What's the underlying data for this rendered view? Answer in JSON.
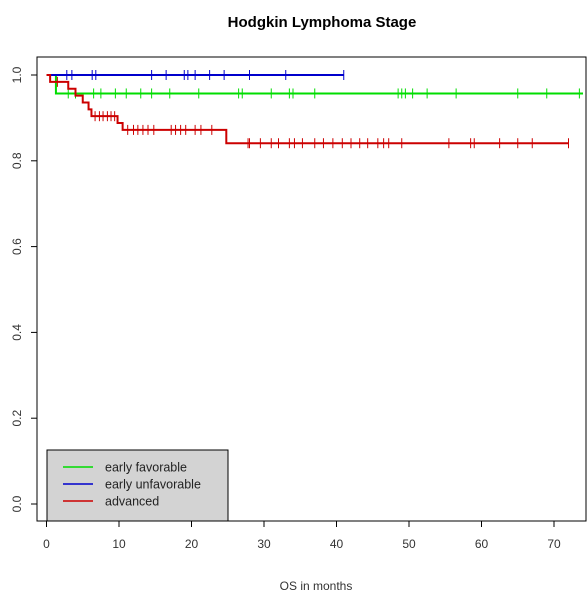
{
  "chart_data": {
    "type": "line",
    "title": "Hodgkin Lymphoma Stage",
    "xlabel": "OS in months",
    "ylabel": "",
    "xlim": [
      0,
      75
    ],
    "ylim": [
      0,
      1.05
    ],
    "x_ticks": [
      0,
      10,
      20,
      30,
      40,
      50,
      60,
      70
    ],
    "y_ticks": [
      0.0,
      0.2,
      0.4,
      0.6,
      0.8,
      1.0
    ],
    "x_tick_labels": [
      "0",
      "10",
      "20",
      "30",
      "40",
      "50",
      "60",
      "70"
    ],
    "y_tick_labels": [
      "0.0",
      "0.2",
      "0.4",
      "0.6",
      "0.8",
      "1.0"
    ],
    "grid": false,
    "legend_position": "bottom-left",
    "series": [
      {
        "name": "early favorable",
        "color": "#00dd00",
        "steps": [
          [
            0,
            1.0
          ],
          [
            1.3,
            0.957
          ],
          [
            74,
            0.957
          ]
        ],
        "censored": [
          3,
          4,
          6.5,
          7.5,
          9.5,
          11,
          13,
          14.5,
          17,
          21,
          26.5,
          27,
          31,
          33.5,
          34,
          37,
          48.5,
          49,
          49.5,
          50.5,
          52.5,
          56.5,
          65,
          69,
          73.5
        ]
      },
      {
        "name": "early unfavorable",
        "color": "#0000cc",
        "steps": [
          [
            0,
            1.0
          ],
          [
            41,
            1.0
          ]
        ],
        "censored": [
          2.8,
          3.5,
          6.3,
          6.8,
          14.5,
          16.5,
          19,
          19.5,
          20.5,
          22.5,
          24.5,
          28,
          33,
          41
        ]
      },
      {
        "name": "advanced",
        "color": "#cc0000",
        "steps": [
          [
            0,
            1.0
          ],
          [
            0.5,
            0.984
          ],
          [
            3,
            0.968
          ],
          [
            4,
            0.952
          ],
          [
            5,
            0.936
          ],
          [
            5.8,
            0.92
          ],
          [
            6.2,
            0.904
          ],
          [
            9.8,
            0.888
          ],
          [
            10.5,
            0.872
          ],
          [
            24.8,
            0.841
          ],
          [
            72,
            0.841
          ]
        ],
        "censored": [
          1.5,
          6.7,
          7.3,
          7.8,
          8.4,
          8.9,
          9.4,
          11.2,
          12,
          12.6,
          13.3,
          14,
          14.8,
          17.2,
          17.8,
          18.5,
          19.2,
          20.5,
          21.3,
          22.8,
          27.8,
          28,
          29.5,
          31,
          32,
          33.5,
          34.2,
          35.3,
          37,
          38.2,
          39.5,
          40.8,
          42,
          43.2,
          44.3,
          45.7,
          46.5,
          47.2,
          49,
          55.5,
          58.5,
          59,
          62.5,
          65,
          67,
          72
        ]
      }
    ]
  }
}
